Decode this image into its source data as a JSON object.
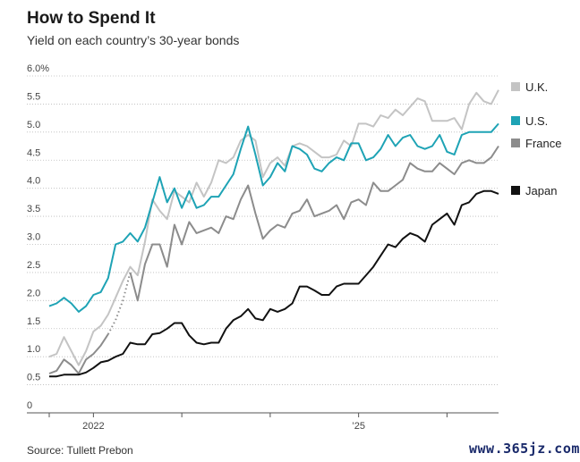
{
  "header": {
    "title": "How to Spend It",
    "subtitle": "Yield on each country’s 30-year bonds"
  },
  "footer": {
    "source": "Source: Tullett Prebon",
    "watermark": "www.365jz.com"
  },
  "chart_data": {
    "type": "line",
    "title": "How to Spend It",
    "subtitle": "Yield on each country’s 30-year bonds",
    "xlabel": "",
    "ylabel": "",
    "ylim": [
      0,
      6
    ],
    "y_ticks": [
      "0",
      "0.5",
      "1.0",
      "1.5",
      "2.0",
      "2.5",
      "3.0",
      "3.5",
      "4.0",
      "4.5",
      "5.0",
      "5.5",
      "6.0%"
    ],
    "x_ticks": [
      {
        "label": "2022",
        "x": 6
      },
      {
        "label": "’25",
        "x": 42
      }
    ],
    "x_minor_ticks": [
      0,
      6,
      18,
      30,
      42,
      54
    ],
    "x_range": [
      0,
      61
    ],
    "grid": true,
    "legend_position": "right",
    "series": [
      {
        "name": "U.K.",
        "color": "#c4c4c4",
        "values": [
          1.0,
          1.05,
          1.35,
          1.1,
          0.85,
          1.1,
          1.45,
          1.55,
          1.75,
          2.05,
          2.35,
          2.6,
          2.45,
          3.05,
          3.8,
          3.6,
          3.45,
          3.95,
          3.85,
          3.75,
          4.1,
          3.85,
          4.1,
          4.5,
          4.45,
          4.55,
          4.85,
          4.95,
          4.85,
          4.2,
          4.45,
          4.55,
          4.4,
          4.75,
          4.8,
          4.75,
          4.65,
          4.55,
          4.55,
          4.6,
          4.85,
          4.75,
          5.15,
          5.15,
          5.1,
          5.3,
          5.25,
          5.4,
          5.3,
          5.45,
          5.6,
          5.55,
          5.2,
          5.2,
          5.2,
          5.25,
          5.05,
          5.5,
          5.7,
          5.55,
          5.5,
          5.75
        ],
        "dashed_segments": []
      },
      {
        "name": "U.S.",
        "color": "#1ea3b5",
        "values": [
          1.9,
          1.95,
          2.05,
          1.95,
          1.8,
          1.9,
          2.1,
          2.15,
          2.4,
          3.0,
          3.05,
          3.2,
          3.05,
          3.3,
          3.75,
          4.2,
          3.75,
          4.0,
          3.65,
          3.95,
          3.65,
          3.7,
          3.85,
          3.85,
          4.05,
          4.25,
          4.7,
          5.1,
          4.6,
          4.05,
          4.2,
          4.45,
          4.3,
          4.75,
          4.7,
          4.6,
          4.35,
          4.3,
          4.45,
          4.55,
          4.5,
          4.8,
          4.8,
          4.5,
          4.55,
          4.7,
          4.95,
          4.75,
          4.9,
          4.95,
          4.75,
          4.7,
          4.75,
          4.95,
          4.65,
          4.6,
          4.95,
          5.0,
          5.0,
          5.0,
          5.0,
          5.15
        ]
      },
      {
        "name": "France",
        "color": "#8c8c8c",
        "values": [
          0.7,
          0.75,
          0.95,
          0.85,
          0.7,
          0.95,
          1.05,
          1.2,
          1.4,
          1.65,
          2.0,
          2.5,
          2.0,
          2.65,
          3.0,
          3.0,
          2.6,
          3.35,
          3.0,
          3.4,
          3.2,
          3.25,
          3.3,
          3.2,
          3.5,
          3.45,
          3.8,
          4.05,
          3.55,
          3.1,
          3.25,
          3.35,
          3.3,
          3.55,
          3.6,
          3.8,
          3.5,
          3.55,
          3.6,
          3.7,
          3.45,
          3.75,
          3.8,
          3.7,
          4.1,
          3.95,
          3.95,
          4.05,
          4.15,
          4.45,
          4.35,
          4.3,
          4.3,
          4.45,
          4.35,
          4.25,
          4.45,
          4.5,
          4.45,
          4.45,
          4.55,
          4.75
        ],
        "dashed_from": 8,
        "dashed_to": 11
      },
      {
        "name": "Japan",
        "color": "#111111",
        "values": [
          0.65,
          0.65,
          0.68,
          0.68,
          0.68,
          0.72,
          0.8,
          0.9,
          0.93,
          1.0,
          1.05,
          1.25,
          1.22,
          1.22,
          1.4,
          1.42,
          1.5,
          1.6,
          1.6,
          1.38,
          1.25,
          1.22,
          1.25,
          1.25,
          1.5,
          1.65,
          1.72,
          1.85,
          1.68,
          1.65,
          1.85,
          1.8,
          1.85,
          1.95,
          2.25,
          2.25,
          2.18,
          2.1,
          2.1,
          2.25,
          2.3,
          2.3,
          2.3,
          2.45,
          2.6,
          2.8,
          3.0,
          2.95,
          3.1,
          3.2,
          3.15,
          3.05,
          3.35,
          3.45,
          3.55,
          3.35,
          3.7,
          3.75,
          3.9,
          3.95,
          3.95,
          3.9
        ]
      }
    ]
  }
}
